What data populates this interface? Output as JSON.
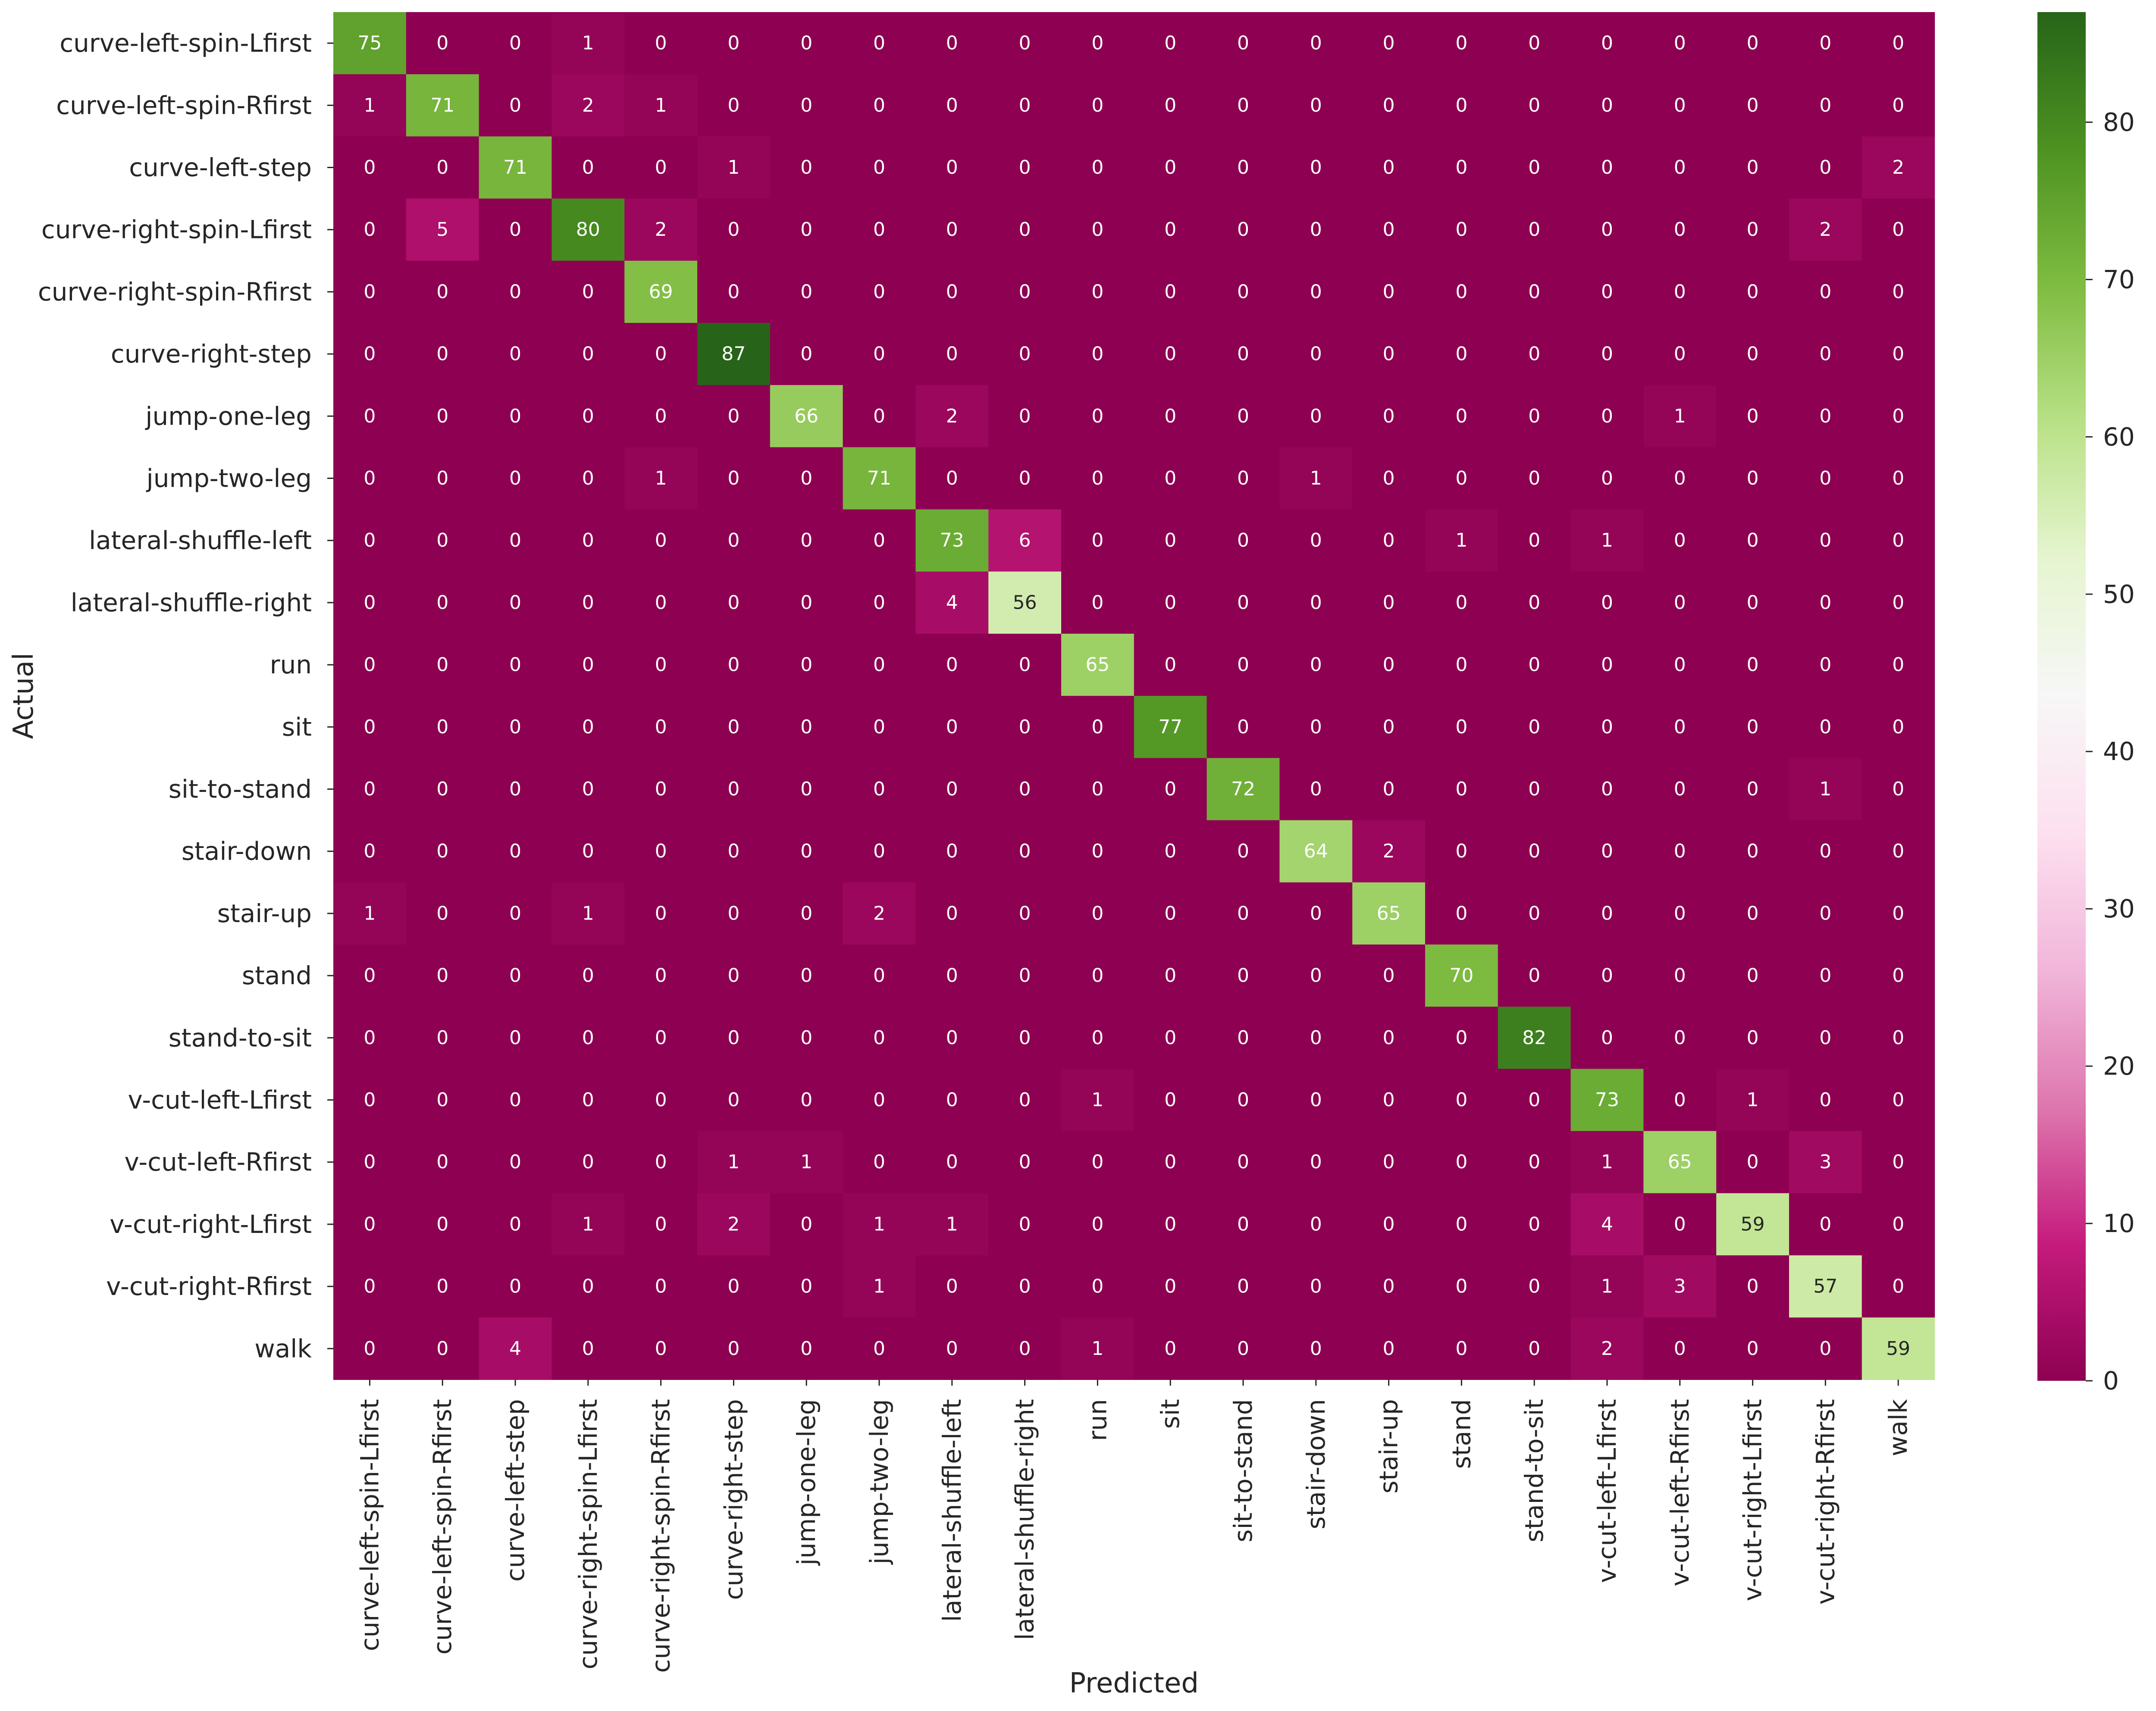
{
  "chart_data": {
    "type": "heatmap",
    "title": "",
    "xlabel": "Predicted",
    "ylabel": "Actual",
    "categories": [
      "curve-left-spin-Lfirst",
      "curve-left-spin-Rfirst",
      "curve-left-step",
      "curve-right-spin-Lfirst",
      "curve-right-spin-Rfirst",
      "curve-right-step",
      "jump-one-leg",
      "jump-two-leg",
      "lateral-shuffle-left",
      "lateral-shuffle-right",
      "run",
      "sit",
      "sit-to-stand",
      "stair-down",
      "stair-up",
      "stand",
      "stand-to-sit",
      "v-cut-left-Lfirst",
      "v-cut-left-Rfirst",
      "v-cut-right-Lfirst",
      "v-cut-right-Rfirst",
      "walk"
    ],
    "matrix": [
      [
        75,
        0,
        0,
        1,
        0,
        0,
        0,
        0,
        0,
        0,
        0,
        0,
        0,
        0,
        0,
        0,
        0,
        0,
        0,
        0,
        0,
        0
      ],
      [
        1,
        71,
        0,
        2,
        1,
        0,
        0,
        0,
        0,
        0,
        0,
        0,
        0,
        0,
        0,
        0,
        0,
        0,
        0,
        0,
        0,
        0
      ],
      [
        0,
        0,
        71,
        0,
        0,
        1,
        0,
        0,
        0,
        0,
        0,
        0,
        0,
        0,
        0,
        0,
        0,
        0,
        0,
        0,
        0,
        2
      ],
      [
        0,
        5,
        0,
        80,
        2,
        0,
        0,
        0,
        0,
        0,
        0,
        0,
        0,
        0,
        0,
        0,
        0,
        0,
        0,
        0,
        2,
        0
      ],
      [
        0,
        0,
        0,
        0,
        69,
        0,
        0,
        0,
        0,
        0,
        0,
        0,
        0,
        0,
        0,
        0,
        0,
        0,
        0,
        0,
        0,
        0
      ],
      [
        0,
        0,
        0,
        0,
        0,
        87,
        0,
        0,
        0,
        0,
        0,
        0,
        0,
        0,
        0,
        0,
        0,
        0,
        0,
        0,
        0,
        0
      ],
      [
        0,
        0,
        0,
        0,
        0,
        0,
        66,
        0,
        2,
        0,
        0,
        0,
        0,
        0,
        0,
        0,
        0,
        0,
        1,
        0,
        0,
        0
      ],
      [
        0,
        0,
        0,
        0,
        1,
        0,
        0,
        71,
        0,
        0,
        0,
        0,
        0,
        1,
        0,
        0,
        0,
        0,
        0,
        0,
        0,
        0
      ],
      [
        0,
        0,
        0,
        0,
        0,
        0,
        0,
        0,
        73,
        6,
        0,
        0,
        0,
        0,
        0,
        1,
        0,
        1,
        0,
        0,
        0,
        0
      ],
      [
        0,
        0,
        0,
        0,
        0,
        0,
        0,
        0,
        4,
        56,
        0,
        0,
        0,
        0,
        0,
        0,
        0,
        0,
        0,
        0,
        0,
        0
      ],
      [
        0,
        0,
        0,
        0,
        0,
        0,
        0,
        0,
        0,
        0,
        65,
        0,
        0,
        0,
        0,
        0,
        0,
        0,
        0,
        0,
        0,
        0
      ],
      [
        0,
        0,
        0,
        0,
        0,
        0,
        0,
        0,
        0,
        0,
        0,
        77,
        0,
        0,
        0,
        0,
        0,
        0,
        0,
        0,
        0,
        0
      ],
      [
        0,
        0,
        0,
        0,
        0,
        0,
        0,
        0,
        0,
        0,
        0,
        0,
        72,
        0,
        0,
        0,
        0,
        0,
        0,
        0,
        1,
        0
      ],
      [
        0,
        0,
        0,
        0,
        0,
        0,
        0,
        0,
        0,
        0,
        0,
        0,
        0,
        64,
        2,
        0,
        0,
        0,
        0,
        0,
        0,
        0
      ],
      [
        1,
        0,
        0,
        1,
        0,
        0,
        0,
        2,
        0,
        0,
        0,
        0,
        0,
        0,
        65,
        0,
        0,
        0,
        0,
        0,
        0,
        0
      ],
      [
        0,
        0,
        0,
        0,
        0,
        0,
        0,
        0,
        0,
        0,
        0,
        0,
        0,
        0,
        0,
        70,
        0,
        0,
        0,
        0,
        0,
        0
      ],
      [
        0,
        0,
        0,
        0,
        0,
        0,
        0,
        0,
        0,
        0,
        0,
        0,
        0,
        0,
        0,
        0,
        82,
        0,
        0,
        0,
        0,
        0
      ],
      [
        0,
        0,
        0,
        0,
        0,
        0,
        0,
        0,
        0,
        0,
        1,
        0,
        0,
        0,
        0,
        0,
        0,
        73,
        0,
        1,
        0,
        0
      ],
      [
        0,
        0,
        0,
        0,
        0,
        1,
        1,
        0,
        0,
        0,
        0,
        0,
        0,
        0,
        0,
        0,
        0,
        1,
        65,
        0,
        3,
        0
      ],
      [
        0,
        0,
        0,
        1,
        0,
        2,
        0,
        1,
        1,
        0,
        0,
        0,
        0,
        0,
        0,
        0,
        0,
        4,
        0,
        59,
        0,
        0
      ],
      [
        0,
        0,
        0,
        0,
        0,
        0,
        0,
        1,
        0,
        0,
        0,
        0,
        0,
        0,
        0,
        0,
        0,
        1,
        3,
        0,
        57,
        0
      ],
      [
        0,
        0,
        4,
        0,
        0,
        0,
        0,
        0,
        0,
        0,
        1,
        0,
        0,
        0,
        0,
        0,
        0,
        2,
        0,
        0,
        0,
        59
      ]
    ],
    "colormap": "PiYG",
    "value_range": [
      0,
      87
    ],
    "colorbar_ticks": [
      0,
      10,
      20,
      30,
      40,
      50,
      60,
      70,
      80
    ],
    "annotations": "cell counts",
    "grid": false,
    "legend": "colorbar-right"
  }
}
